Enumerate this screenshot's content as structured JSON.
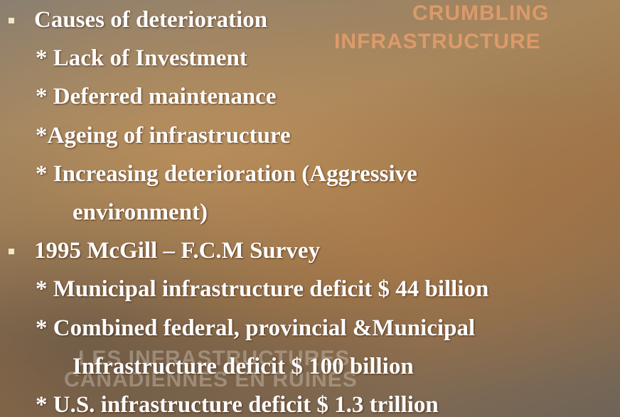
{
  "watermark": {
    "top": [
      "CRUMBLING",
      "INFRASTRUCTURE"
    ],
    "bottom": [
      "LES INFRASTRUCTURES",
      "CANADIENNES EN RUINES"
    ]
  },
  "bullets": [
    {
      "heading": "Causes of deterioration",
      "items": [
        [
          "* Lack of Investment"
        ],
        [
          "* Deferred maintenance"
        ],
        [
          "*Ageing of infrastructure"
        ],
        [
          "* Increasing deterioration (Aggressive",
          "environment)"
        ]
      ]
    },
    {
      "heading": "1995 McGill – F.C.M Survey",
      "items": [
        [
          "* Municipal infrastructure deficit $ 44 billion"
        ],
        [
          "* Combined federal, provincial &Municipal",
          "Infrastructure deficit $ 100 billion"
        ],
        [
          "* U.S. infrastructure deficit $ 1.3 trillion"
        ]
      ]
    }
  ]
}
